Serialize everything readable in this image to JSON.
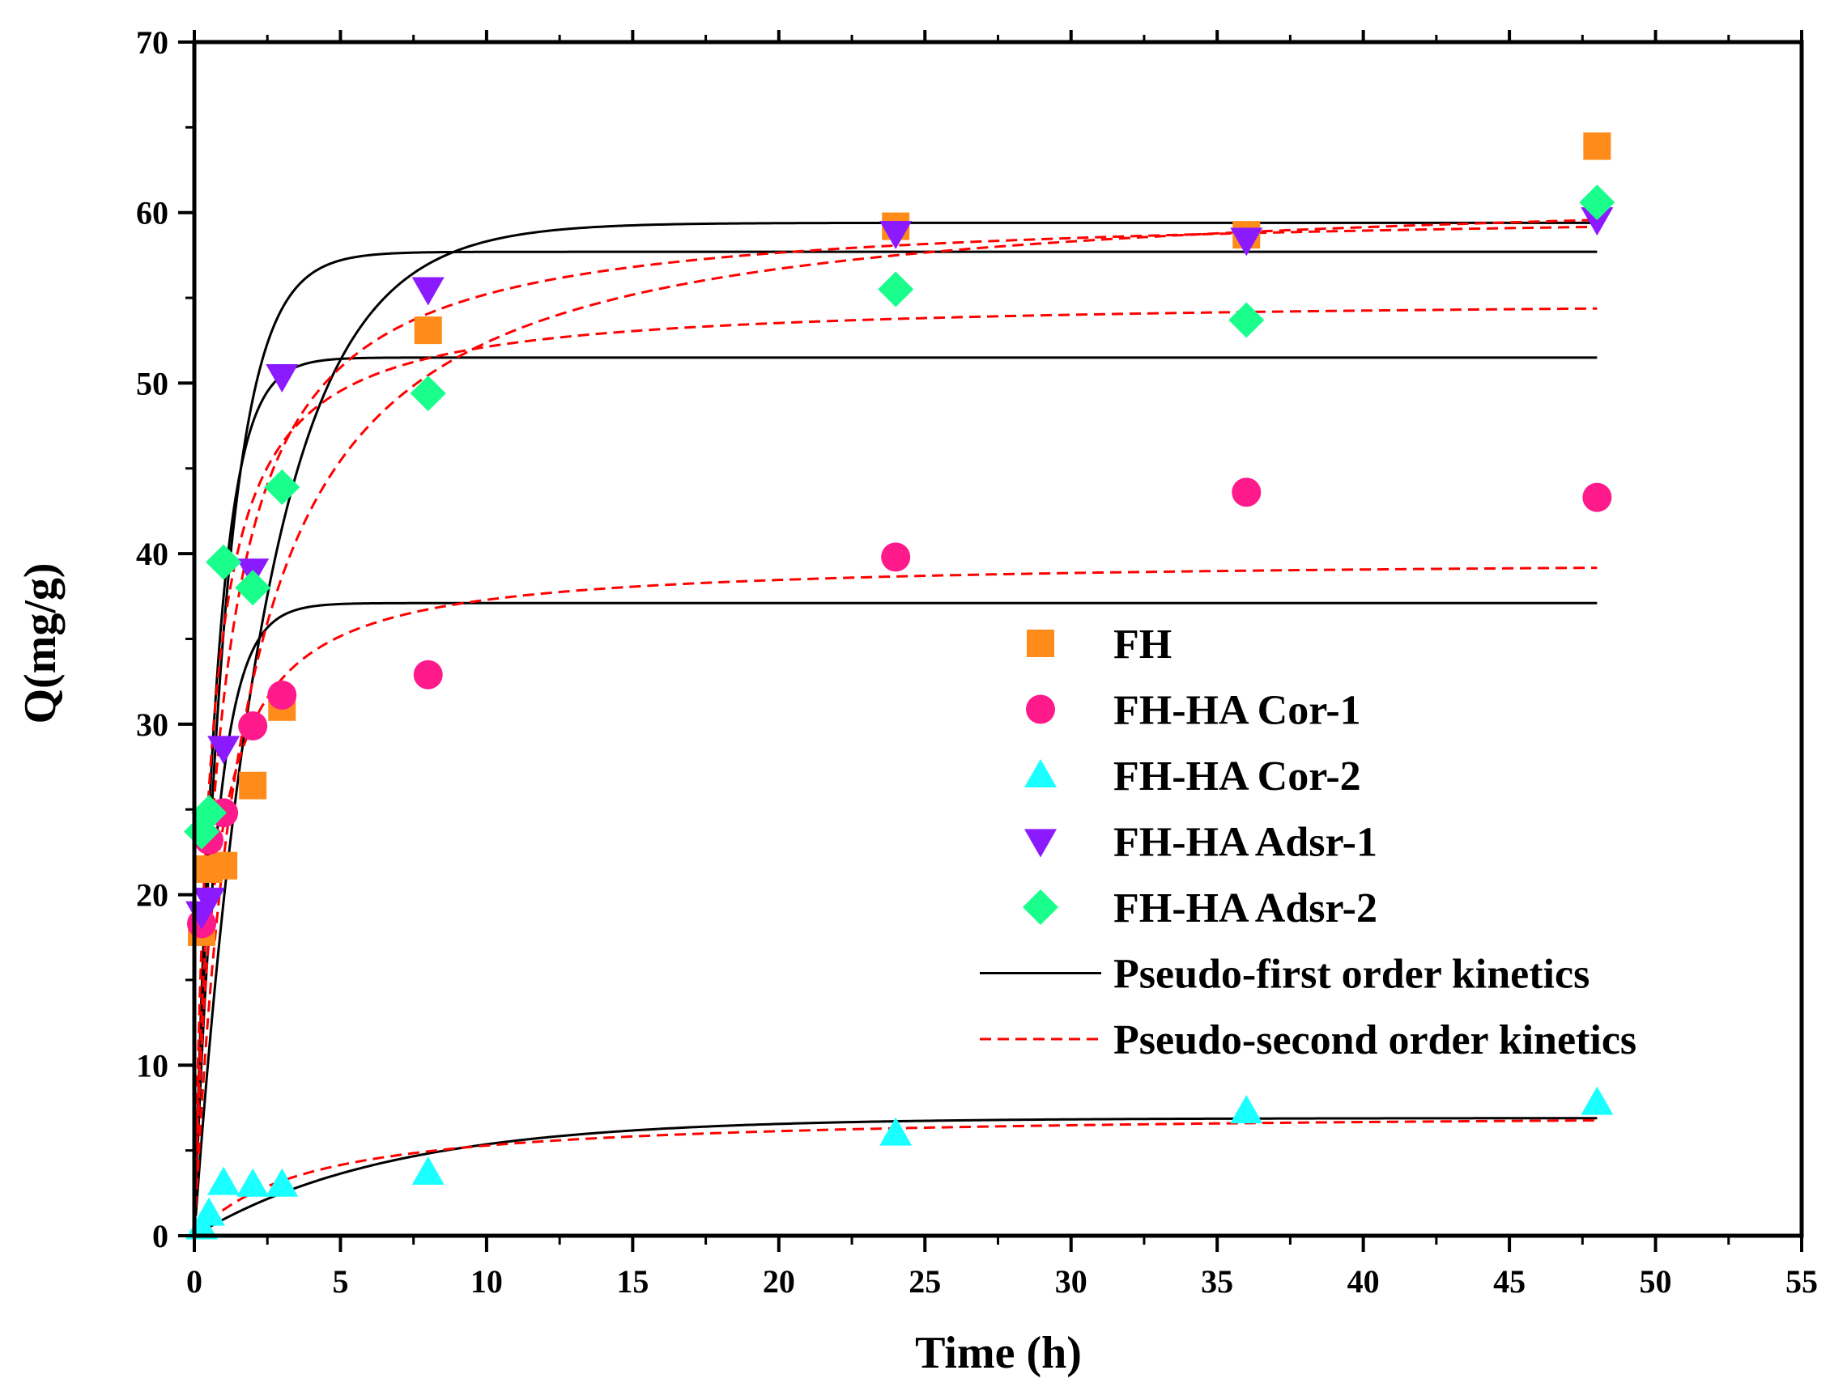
{
  "chart_data": {
    "type": "scatter",
    "title": "",
    "xlabel": "Time (h)",
    "ylabel": "Q(mg/g)",
    "xlim": [
      0,
      55
    ],
    "ylim": [
      0,
      70
    ],
    "xticks": [
      0,
      5,
      10,
      15,
      20,
      25,
      30,
      35,
      40,
      45,
      50,
      55
    ],
    "yticks": [
      0,
      10,
      20,
      30,
      40,
      50,
      60,
      70
    ],
    "grid": false,
    "legend_position": "right",
    "series": [
      {
        "name": "FH",
        "marker": "square",
        "color": "#FF8C1A",
        "x": [
          0.25,
          0.5,
          1,
          2,
          3,
          8,
          24,
          36,
          48
        ],
        "y": [
          17.8,
          21.5,
          21.7,
          26.4,
          31.0,
          53.1,
          59.2,
          58.7,
          63.9
        ]
      },
      {
        "name": "FH-HA Cor-1",
        "marker": "circle",
        "color": "#FF1A8C",
        "x": [
          0.25,
          0.5,
          1,
          2,
          3,
          8,
          24,
          36,
          48
        ],
        "y": [
          18.3,
          23.2,
          24.8,
          29.9,
          31.7,
          32.9,
          39.8,
          43.6,
          43.3
        ]
      },
      {
        "name": "FH-HA Cor-2",
        "marker": "triangle-up",
        "color": "#1AFFFF",
        "x": [
          0.25,
          0.5,
          1,
          2,
          3,
          8,
          24,
          36,
          48
        ],
        "y": [
          0.5,
          1.3,
          3.1,
          3.0,
          3.0,
          3.7,
          6.0,
          7.3,
          7.8
        ]
      },
      {
        "name": "FH-HA Adsr-1",
        "marker": "triangle-down",
        "color": "#8C1AFF",
        "x": [
          0.25,
          0.5,
          1,
          2,
          3,
          8,
          24,
          36,
          48
        ],
        "y": [
          18.9,
          19.7,
          28.6,
          39.0,
          50.4,
          55.5,
          58.8,
          58.4,
          59.6
        ]
      },
      {
        "name": "FH-HA Adsr-2",
        "marker": "diamond",
        "color": "#1AFF8C",
        "x": [
          0.25,
          0.5,
          1,
          2,
          3,
          8,
          24,
          36,
          48
        ],
        "y": [
          23.7,
          24.8,
          39.5,
          38.0,
          43.9,
          49.4,
          55.5,
          53.7,
          60.6
        ]
      }
    ],
    "fits": [
      {
        "name": "Pseudo-first order kinetics",
        "style": "solid",
        "color": "#000000",
        "curves": [
          {
            "qe": 59.4,
            "k": 0.4
          },
          {
            "qe": 57.7,
            "k": 0.95
          },
          {
            "qe": 51.5,
            "k": 1.3
          },
          {
            "qe": 37.1,
            "k": 1.3
          },
          {
            "qe": 6.9,
            "k": 0.15
          }
        ]
      },
      {
        "name": "Pseudo-second order kinetics",
        "style": "dashed",
        "color": "#FF0000",
        "curves": [
          {
            "qe": 61.8,
            "k2": 0.009
          },
          {
            "qe": 60.3,
            "k2": 0.018
          },
          {
            "qe": 55.0,
            "k2": 0.033
          },
          {
            "qe": 39.7,
            "k2": 0.039
          },
          {
            "qe": 7.3,
            "k2": 0.036
          }
        ]
      }
    ],
    "legend": [
      "FH",
      "FH-HA Cor-1",
      "FH-HA Cor-2",
      "FH-HA Adsr-1",
      "FH-HA Adsr-2",
      "Pseudo-first order kinetics",
      "Pseudo-second order kinetics"
    ]
  }
}
